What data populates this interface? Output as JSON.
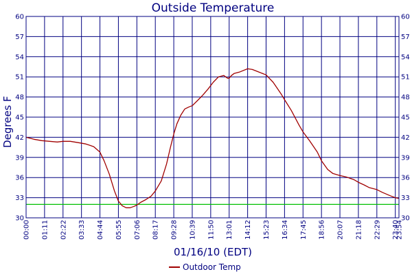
{
  "colors": {
    "axis_text": "#000080",
    "grid": "#000080",
    "series": "#a00000",
    "reference": "#00c000",
    "background": "#ffffff"
  },
  "chart_data": {
    "type": "line",
    "title": "Outside Temperature",
    "xlabel": "01/16/10 (EDT)",
    "ylabel": "Degrees F",
    "grid": true,
    "legend_position": "bottom-center",
    "xlim": [
      0,
      1434
    ],
    "ylim": [
      30,
      60
    ],
    "y_ticks": [
      30,
      33,
      36,
      39,
      42,
      45,
      48,
      51,
      54,
      57,
      60
    ],
    "x_tick_labels": [
      "00:00",
      "01:11",
      "02:22",
      "03:33",
      "04:44",
      "05:55",
      "07:06",
      "08:17",
      "09:28",
      "10:39",
      "11:50",
      "13:01",
      "14:12",
      "15:23",
      "16:34",
      "17:45",
      "18:56",
      "20:07",
      "21:18",
      "22:29",
      "23:40",
      "23:54"
    ],
    "x_tick_minutes": [
      0,
      71,
      142,
      213,
      284,
      355,
      426,
      497,
      568,
      639,
      710,
      781,
      852,
      923,
      994,
      1065,
      1136,
      1207,
      1278,
      1349,
      1420,
      1434
    ],
    "reference_line": {
      "y": 32
    },
    "series": [
      {
        "name": "Outdoor Temp",
        "x": [
          0,
          30,
          60,
          90,
          120,
          142,
          170,
          200,
          230,
          260,
          284,
          300,
          320,
          340,
          355,
          370,
          385,
          400,
          415,
          426,
          440,
          460,
          480,
          497,
          520,
          540,
          555,
          568,
          580,
          595,
          610,
          625,
          639,
          660,
          680,
          700,
          720,
          740,
          760,
          775,
          781,
          790,
          800,
          820,
          852,
          870,
          890,
          923,
          950,
          980,
          994,
          1020,
          1050,
          1065,
          1090,
          1120,
          1136,
          1160,
          1180,
          1207,
          1230,
          1260,
          1278,
          1300,
          1320,
          1349,
          1370,
          1400,
          1420,
          1434
        ],
        "y": [
          42.0,
          41.7,
          41.5,
          41.4,
          41.3,
          41.4,
          41.4,
          41.2,
          41.0,
          40.6,
          39.8,
          38.5,
          36.5,
          34.0,
          32.5,
          31.8,
          31.5,
          31.5,
          31.7,
          31.9,
          32.3,
          32.7,
          33.2,
          34.0,
          35.5,
          38.0,
          40.5,
          42.5,
          44.0,
          45.3,
          46.2,
          46.5,
          46.7,
          47.5,
          48.3,
          49.2,
          50.2,
          51.0,
          51.2,
          50.8,
          50.8,
          51.2,
          51.5,
          51.7,
          52.2,
          52.1,
          51.8,
          51.3,
          50.2,
          48.5,
          47.6,
          46.0,
          43.8,
          42.8,
          41.5,
          39.8,
          38.5,
          37.2,
          36.6,
          36.3,
          36.1,
          35.7,
          35.3,
          34.9,
          34.5,
          34.2,
          33.8,
          33.3,
          33.0,
          32.9
        ]
      }
    ]
  }
}
